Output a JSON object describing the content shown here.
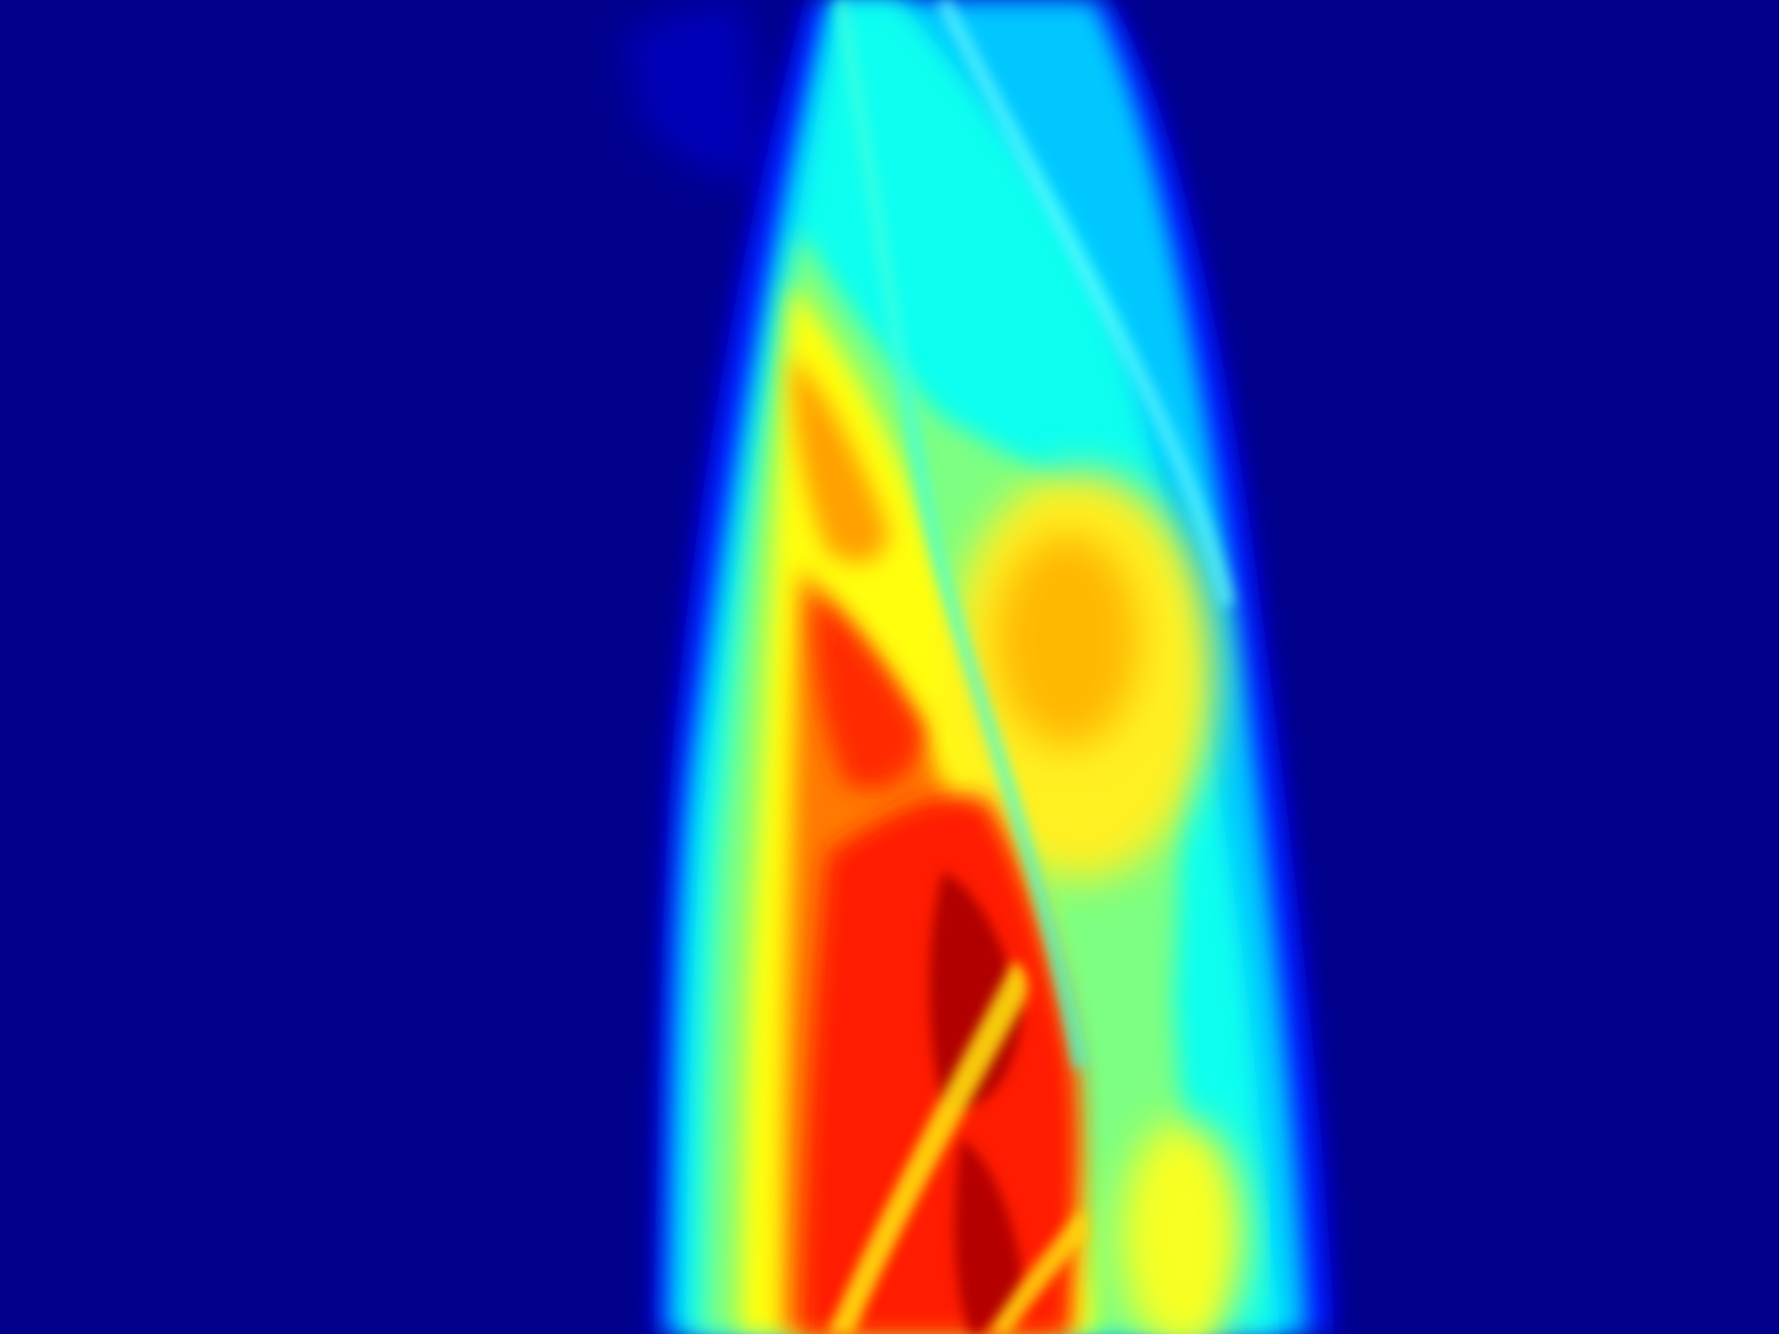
{
  "image": {
    "colormap": "jet",
    "background_color": "#00008B",
    "colormap_stops": [
      "#00008B",
      "#0000FF",
      "#00A0FF",
      "#00FFFF",
      "#7FFF7F",
      "#FFFF00",
      "#FFA500",
      "#FF2000",
      "#B00000"
    ]
  }
}
